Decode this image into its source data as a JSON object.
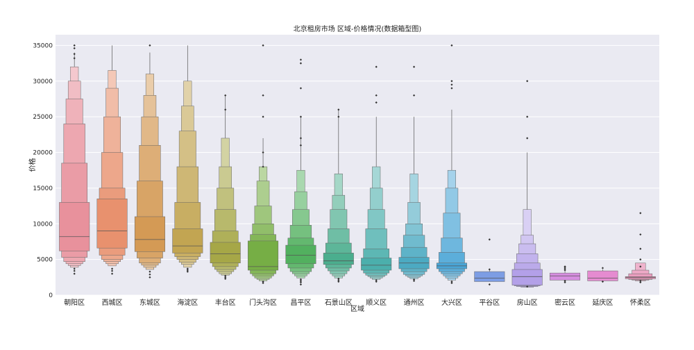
{
  "chart_data": {
    "type": "boxen",
    "title": "北京租房市场 区域-价格情况(数据箱型图)",
    "xlabel": "区域",
    "ylabel": "价格",
    "ylim": [
      0,
      36500
    ],
    "yticks": [
      0,
      5000,
      10000,
      15000,
      20000,
      25000,
      30000,
      35000
    ],
    "grid": true,
    "legend": "none",
    "colors": {
      "plot_background": "#EAEAF2",
      "grid": "#FFFFFF",
      "text": "#222222",
      "median_line": "#555555"
    },
    "categories": [
      "朝阳区",
      "西城区",
      "东城区",
      "海淀区",
      "丰台区",
      "门头沟区",
      "昌平区",
      "石景山区",
      "顺义区",
      "通州区",
      "大兴区",
      "平谷区",
      "房山区",
      "密云区",
      "延庆区",
      "怀柔区"
    ],
    "series": [
      {
        "category": "朝阳区",
        "color": "#E8919C",
        "median": 8200,
        "max": 34000,
        "levels": [
          [
            6200,
            13000
          ],
          [
            5300,
            18500
          ],
          [
            4700,
            24000
          ],
          [
            4400,
            27500
          ],
          [
            4150,
            30000
          ],
          [
            3900,
            32000
          ]
        ],
        "outliers": [
          35000,
          34600,
          33800,
          33200,
          3700,
          3400,
          3000
        ]
      },
      {
        "category": "西城区",
        "color": "#E8916E",
        "median": 9000,
        "max": 35000,
        "levels": [
          [
            6600,
            13500
          ],
          [
            5600,
            15000
          ],
          [
            5000,
            20000
          ],
          [
            4700,
            25000
          ],
          [
            4400,
            29000
          ],
          [
            4100,
            31500
          ]
        ],
        "outliers": [
          3700,
          3400,
          3000
        ]
      },
      {
        "category": "东城区",
        "color": "#D49A55",
        "median": 7800,
        "max": 34000,
        "levels": [
          [
            6100,
            11000
          ],
          [
            5200,
            16000
          ],
          [
            4500,
            21000
          ],
          [
            4200,
            25000
          ],
          [
            3900,
            28000
          ],
          [
            3600,
            31000
          ]
        ],
        "outliers": [
          35000,
          3300,
          2900,
          2500
        ]
      },
      {
        "category": "海淀区",
        "color": "#C2A552",
        "median": 6900,
        "max": 35000,
        "levels": [
          [
            5900,
            9300
          ],
          [
            5400,
            13000
          ],
          [
            5000,
            18000
          ],
          [
            4600,
            23000
          ],
          [
            4300,
            26500
          ],
          [
            3900,
            30000
          ]
        ],
        "outliers": [
          3700,
          3500,
          3300
        ]
      },
      {
        "category": "丰台区",
        "color": "#A6A747",
        "median": 5800,
        "max": 28000,
        "levels": [
          [
            4500,
            7400
          ],
          [
            4000,
            9000
          ],
          [
            3600,
            12000
          ],
          [
            3300,
            15000
          ],
          [
            3000,
            18000
          ],
          [
            2800,
            22000
          ]
        ],
        "outliers": [
          28000,
          26000,
          2700,
          2500,
          2300
        ]
      },
      {
        "category": "门头沟区",
        "color": "#76AE45",
        "median": 4000,
        "max": 22000,
        "levels": [
          [
            3500,
            7600
          ],
          [
            3000,
            8500
          ],
          [
            2700,
            10000
          ],
          [
            2400,
            12500
          ],
          [
            2200,
            16000
          ],
          [
            2000,
            18000
          ]
        ],
        "outliers": [
          35000,
          28000,
          25000,
          20000,
          18000,
          1900,
          1700
        ]
      },
      {
        "category": "昌平区",
        "color": "#52B05F",
        "median": 5600,
        "max": 25000,
        "levels": [
          [
            4400,
            7000
          ],
          [
            3800,
            8000
          ],
          [
            3300,
            9800
          ],
          [
            3000,
            12000
          ],
          [
            2700,
            14500
          ],
          [
            2400,
            17500
          ]
        ],
        "outliers": [
          33000,
          32500,
          29000,
          25000,
          22000,
          21000,
          2200,
          2000,
          1800,
          1500
        ]
      },
      {
        "category": "石景山区",
        "color": "#4BAE8E",
        "median": 4800,
        "max": 26000,
        "levels": [
          [
            4300,
            5900
          ],
          [
            3800,
            7300
          ],
          [
            3400,
            9300
          ],
          [
            3000,
            12000
          ],
          [
            2700,
            14000
          ],
          [
            2400,
            17000
          ]
        ],
        "outliers": [
          26000,
          25000,
          2300,
          2100,
          1900
        ]
      },
      {
        "category": "顺义区",
        "color": "#4BAFAC",
        "median": 4200,
        "max": 25000,
        "levels": [
          [
            3500,
            5200
          ],
          [
            3100,
            6500
          ],
          [
            2800,
            9300
          ],
          [
            2600,
            12000
          ],
          [
            2400,
            15000
          ],
          [
            2200,
            18000
          ]
        ],
        "outliers": [
          32000,
          28000,
          27000,
          2100,
          1900
        ]
      },
      {
        "category": "通州区",
        "color": "#4CAAC2",
        "median": 4500,
        "max": 25000,
        "levels": [
          [
            3700,
            5300
          ],
          [
            3300,
            6700
          ],
          [
            2900,
            8400
          ],
          [
            2700,
            10000
          ],
          [
            2500,
            13000
          ],
          [
            2300,
            17000
          ]
        ],
        "outliers": [
          32000,
          28000,
          2200,
          2000
        ]
      },
      {
        "category": "大兴区",
        "color": "#4AA5D6",
        "median": 4100,
        "max": 26000,
        "levels": [
          [
            3700,
            4500
          ],
          [
            3300,
            6000
          ],
          [
            3000,
            8000
          ],
          [
            2700,
            11500
          ],
          [
            2400,
            15000
          ],
          [
            2100,
            17500
          ]
        ],
        "outliers": [
          35000,
          30000,
          29500,
          29000,
          1900,
          1700
        ]
      },
      {
        "category": "平谷区",
        "color": "#7D9DE4",
        "median": 2400,
        "max": 3700,
        "levels": [
          [
            1900,
            3300
          ]
        ],
        "outliers": [
          7800,
          3600,
          1500
        ]
      },
      {
        "category": "房山区",
        "color": "#B3A0E8",
        "median": 2600,
        "max": 20000,
        "levels": [
          [
            1400,
            3600
          ],
          [
            1300,
            4500
          ],
          [
            1200,
            5800
          ],
          [
            1200,
            7200
          ],
          [
            1100,
            8400
          ],
          [
            1100,
            12000
          ]
        ],
        "outliers": [
          30000,
          25000,
          22000,
          1200
        ]
      },
      {
        "category": "密云区",
        "color": "#D68EE0",
        "median": 2700,
        "max": 3900,
        "levels": [
          [
            2100,
            3100
          ]
        ],
        "outliers": [
          4000,
          3900,
          3700,
          3500,
          2000,
          1800
        ]
      },
      {
        "category": "延庆区",
        "color": "#E58BD0",
        "median": 2400,
        "max": 3600,
        "levels": [
          [
            2000,
            3400
          ]
        ],
        "outliers": [
          3800,
          1900
        ]
      },
      {
        "category": "怀柔区",
        "color": "#E893B8",
        "median": 2500,
        "max": 3600,
        "levels": [
          [
            2300,
            2600
          ],
          [
            2200,
            3000
          ],
          [
            2100,
            3500
          ],
          [
            2000,
            4500
          ]
        ],
        "outliers": [
          11500,
          8500,
          6500,
          5000,
          4000,
          2000,
          1800
        ]
      }
    ]
  }
}
